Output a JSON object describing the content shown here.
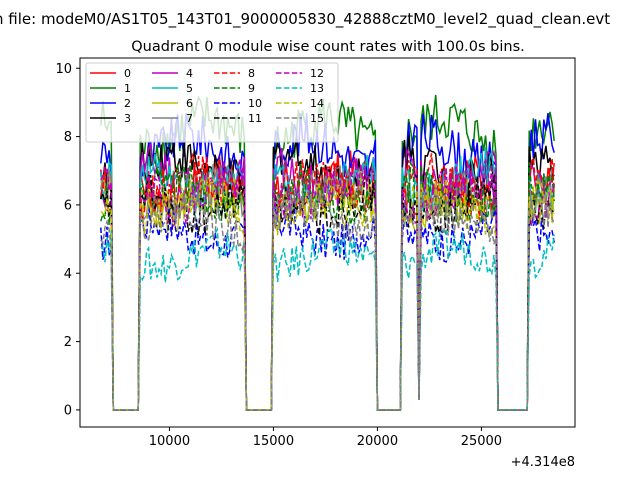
{
  "chart_data": {
    "type": "line",
    "suptitle": "n file: modeM0/AS1T05_143T01_9000005830_42888cztM0_level2_quad_clean.evt",
    "title": "Quadrant 0 module wise count rates with 100.0s bins.",
    "xlabel": "",
    "ylabel": "",
    "x_offset_label": "+4.314e8",
    "xlim": [
      5700,
      29500
    ],
    "ylim": [
      -0.5,
      10.3
    ],
    "x_ticks": [
      10000,
      15000,
      20000,
      25000
    ],
    "x_tick_labels": [
      "10000",
      "15000",
      "20000",
      "25000"
    ],
    "y_ticks": [
      0,
      2,
      4,
      6,
      8,
      10
    ],
    "y_tick_labels": [
      "0",
      "2",
      "4",
      "6",
      "8",
      "10"
    ],
    "bin_size_s": 100,
    "legend_location": "upper-left",
    "legend_columns": 4,
    "data_window_x": [
      6700,
      28500
    ],
    "gaps": [
      [
        7300,
        8500
      ],
      [
        13700,
        14900
      ],
      [
        20000,
        21100
      ],
      [
        25800,
        27200
      ]
    ],
    "dips": [
      [
        22000,
        0.3
      ]
    ],
    "series": [
      {
        "name": "0",
        "color": "#ff0000",
        "dash": "solid",
        "level": 6.6
      },
      {
        "name": "1",
        "color": "#008000",
        "dash": "solid",
        "level": 8.1
      },
      {
        "name": "2",
        "color": "#0000ff",
        "dash": "solid",
        "level": 7.6
      },
      {
        "name": "3",
        "color": "#000000",
        "dash": "solid",
        "level": 7.1
      },
      {
        "name": "4",
        "color": "#bf00bf",
        "dash": "solid",
        "level": 6.8
      },
      {
        "name": "5",
        "color": "#00bfbf",
        "dash": "solid",
        "level": 6.7
      },
      {
        "name": "6",
        "color": "#bfbf00",
        "dash": "solid",
        "level": 6.1
      },
      {
        "name": "7",
        "color": "#808080",
        "dash": "solid",
        "level": 6.2
      },
      {
        "name": "8",
        "color": "#ff0000",
        "dash": "dashed",
        "level": 6.5
      },
      {
        "name": "9",
        "color": "#008000",
        "dash": "dashed",
        "level": 6.3
      },
      {
        "name": "10",
        "color": "#0000ff",
        "dash": "dashed",
        "level": 5.2
      },
      {
        "name": "11",
        "color": "#000000",
        "dash": "dashed",
        "level": 6.0
      },
      {
        "name": "12",
        "color": "#bf00bf",
        "dash": "dashed",
        "level": 6.4
      },
      {
        "name": "13",
        "color": "#00bfbf",
        "dash": "dashed",
        "level": 4.5
      },
      {
        "name": "14",
        "color": "#bfbf00",
        "dash": "dashed",
        "level": 5.9
      },
      {
        "name": "15",
        "color": "#808080",
        "dash": "dashed",
        "level": 5.6
      }
    ]
  }
}
